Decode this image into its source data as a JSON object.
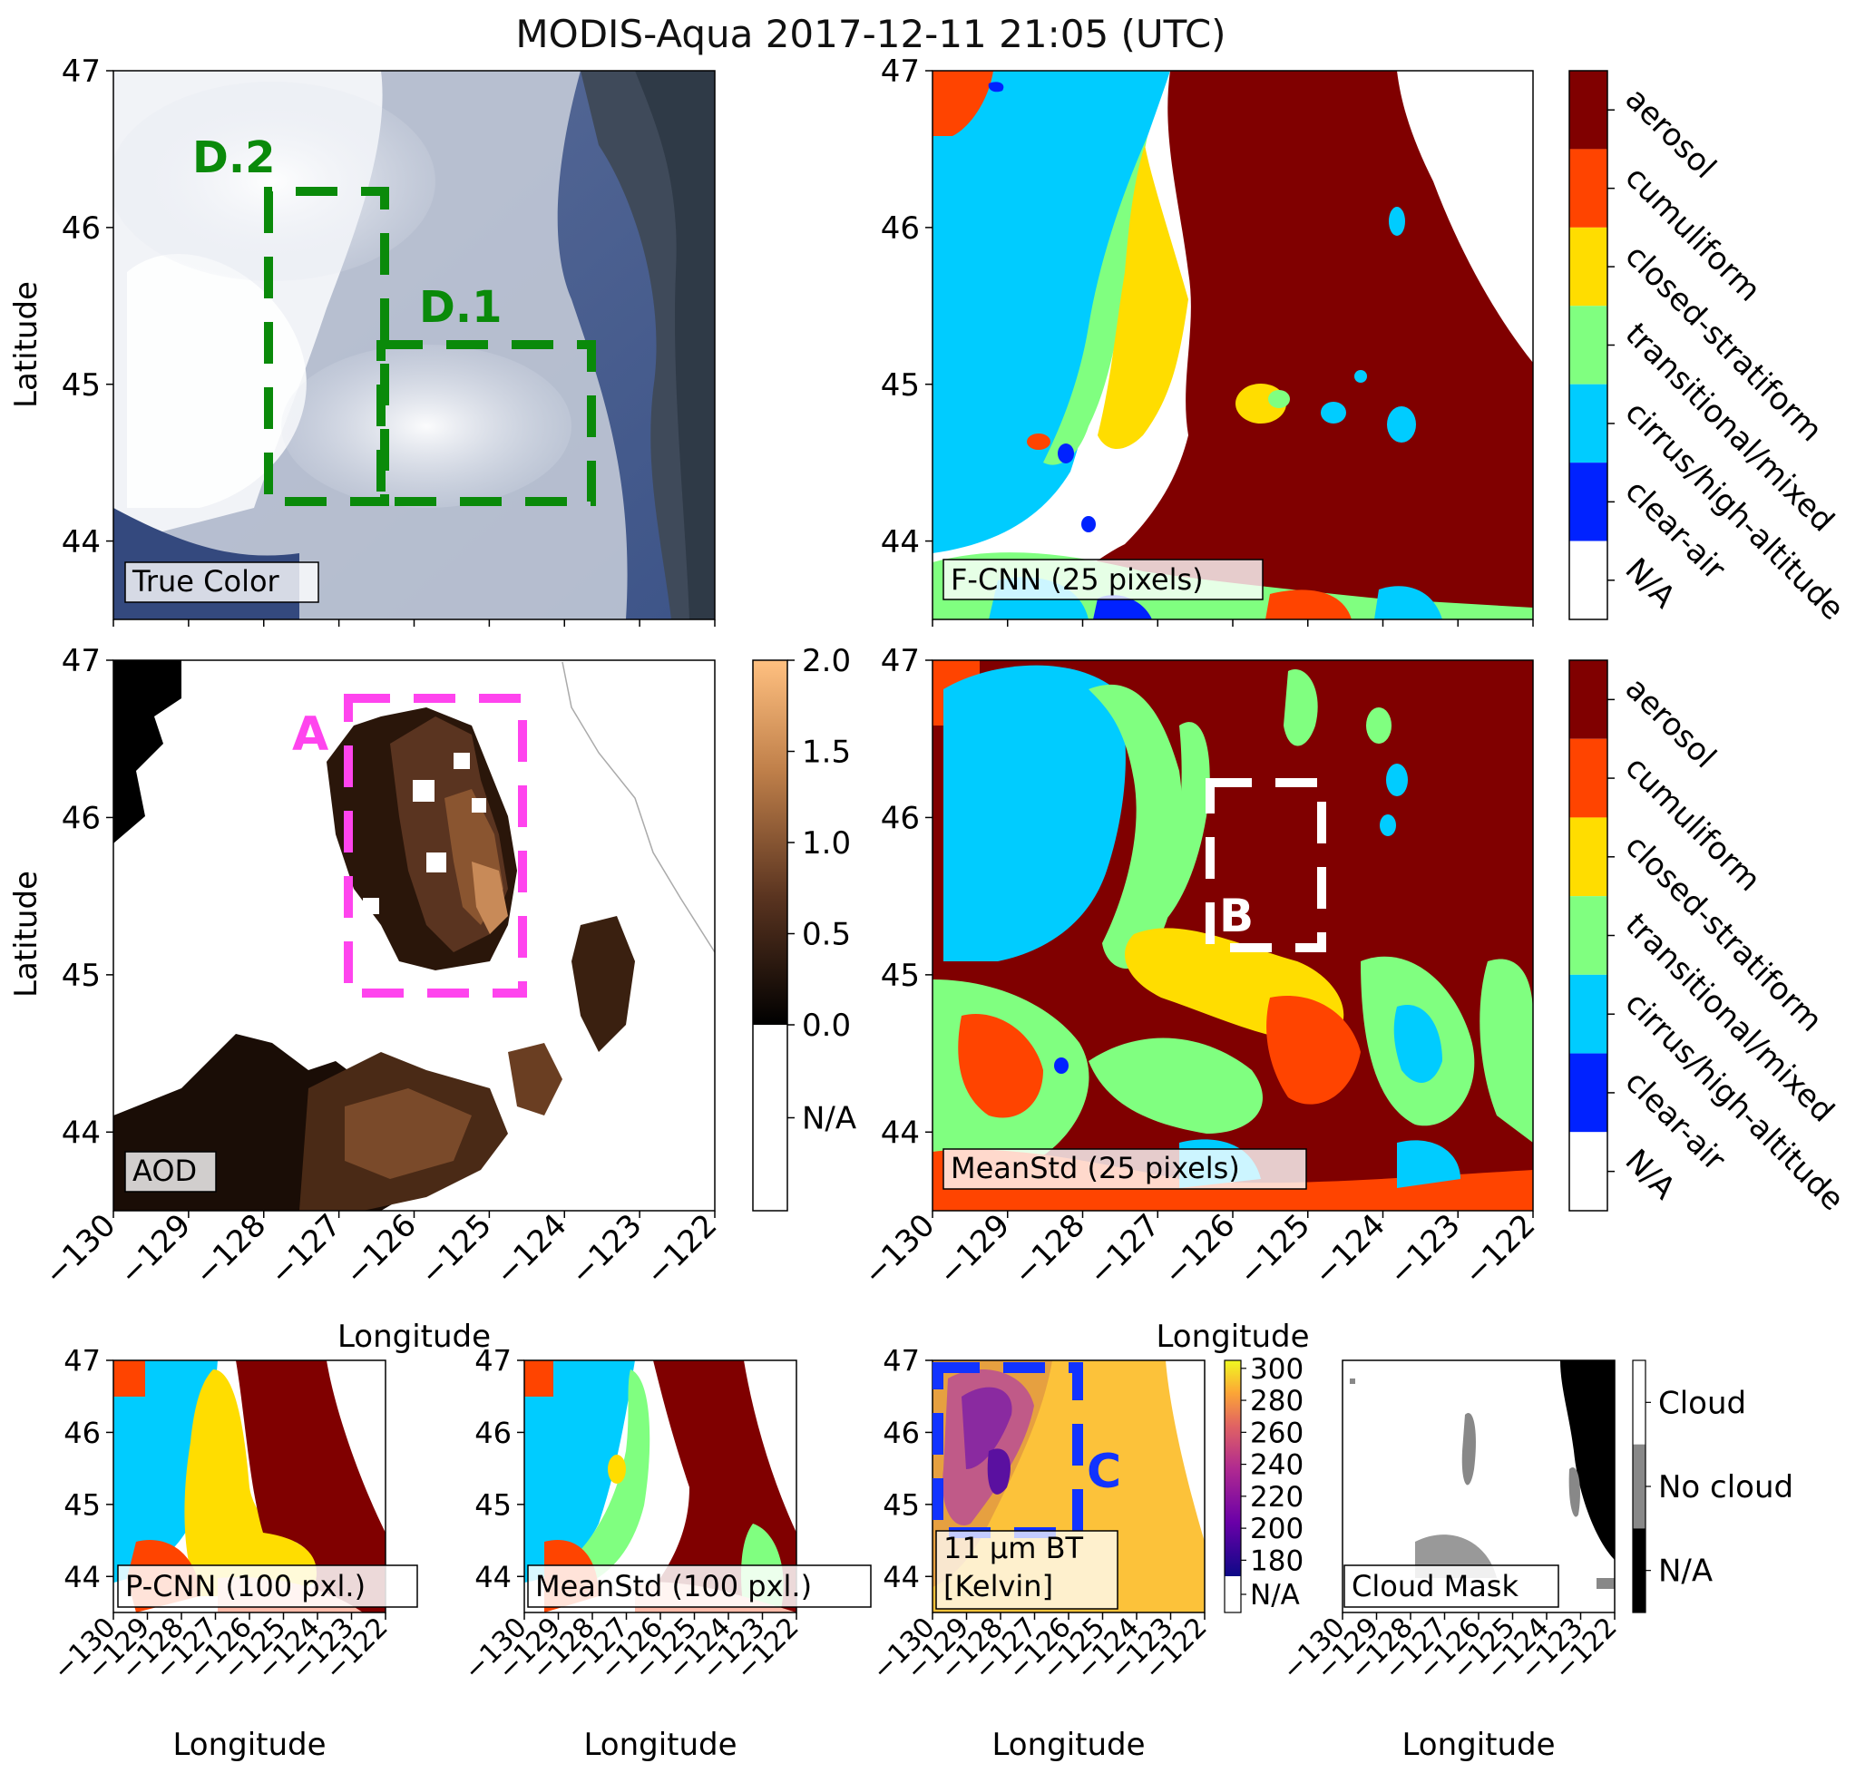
{
  "title": "MODIS-Aqua 2017-12-11 21:05 (UTC)",
  "axes": {
    "xlabel": "Longitude",
    "ylabel": "Latitude",
    "lat_ticks": [
      "47",
      "46",
      "45",
      "44"
    ],
    "lon_ticks": [
      "−130",
      "−129",
      "−128",
      "−127",
      "−126",
      "−125",
      "−124",
      "−123",
      "−122"
    ]
  },
  "panels": {
    "true_color": {
      "label": "True Color",
      "boxes": [
        "D.2",
        "D.1"
      ]
    },
    "fcnn": {
      "label": "F-CNN (25 pixels)"
    },
    "aod": {
      "label": "AOD",
      "box": "A"
    },
    "meanstd25": {
      "label": "MeanStd (25 pixels)",
      "box": "B"
    },
    "pcnn100": {
      "label": "P-CNN (100 pxl.)"
    },
    "meanstd100": {
      "label": "MeanStd (100 pxl.)"
    },
    "bt11": {
      "label_line1": "11 μm BT",
      "label_line2": "[Kelvin]",
      "box": "C"
    },
    "cloudmask": {
      "label": "Cloud Mask"
    }
  },
  "class_legend": {
    "labels": [
      "aerosol",
      "cumuliform",
      "closed-stratiform",
      "transitional/mixed",
      "cirrus/high-altitude",
      "clear-air",
      "N/A"
    ],
    "colors": [
      "#800000",
      "#ff4400",
      "#ffdd00",
      "#80ff80",
      "#00ccff",
      "#0022ff",
      "#ffffff"
    ]
  },
  "aod_colorbar": {
    "ticks": [
      "2.0",
      "1.5",
      "1.0",
      "0.5",
      "0.0",
      "N/A"
    ],
    "range": [
      0,
      2
    ]
  },
  "bt_colorbar": {
    "ticks": [
      "300",
      "280",
      "260",
      "240",
      "220",
      "200",
      "180",
      "N/A"
    ],
    "range": [
      170,
      305
    ]
  },
  "cloudmask_colorbar": {
    "ticks": [
      "Cloud",
      "No cloud",
      "N/A"
    ]
  },
  "colors": {
    "box_d": "#0a8a0a",
    "box_a": "#ff44ee",
    "box_b": "#ffffff",
    "box_c": "#1133ff"
  },
  "chart_data": {
    "type": "heatmap",
    "title": "MODIS-Aqua 2017-12-11 21:05 (UTC)",
    "xlabel": "Longitude",
    "ylabel": "Latitude",
    "xlim": [
      -130,
      -122
    ],
    "ylim": [
      43.5,
      47
    ],
    "panels": [
      "True Color",
      "F-CNN (25 pixels)",
      "AOD",
      "MeanStd (25 pixels)",
      "P-CNN (100 pxl.)",
      "MeanStd (100 pxl.)",
      "11 μm BT [Kelvin]",
      "Cloud Mask"
    ],
    "class_labels": [
      "aerosol",
      "cumuliform",
      "closed-stratiform",
      "transitional/mixed",
      "cirrus/high-altitude",
      "clear-air",
      "N/A"
    ],
    "aod_colorbar_range": [
      0,
      2
    ],
    "bt_colorbar_range": [
      170,
      305
    ],
    "cloud_mask_labels": [
      "Cloud",
      "No cloud",
      "N/A"
    ]
  }
}
